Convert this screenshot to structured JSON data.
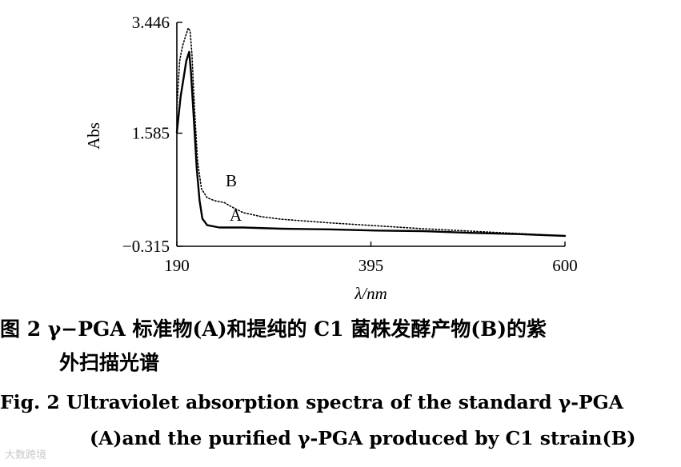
{
  "chart_data": {
    "type": "line",
    "xlabel": "λ/nm",
    "ylabel": "Abs",
    "xlim": [
      190,
      600
    ],
    "ylim": [
      -0.315,
      3.446
    ],
    "x_ticks": [
      190,
      395,
      600
    ],
    "y_ticks": [
      -0.315,
      1.585,
      3.446
    ],
    "x_tick_labels": [
      "190",
      "395",
      "600"
    ],
    "y_tick_labels": [
      "−0.315",
      "1.585",
      "3.446"
    ],
    "grid": false,
    "series": [
      {
        "name": "A",
        "style": "solid",
        "color": "#000000",
        "points": [
          [
            190,
            1.6
          ],
          [
            194,
            2.2
          ],
          [
            197,
            2.5
          ],
          [
            200,
            2.8
          ],
          [
            203,
            2.95
          ],
          [
            205,
            2.6
          ],
          [
            208,
            1.8
          ],
          [
            211,
            1.0
          ],
          [
            214,
            0.45
          ],
          [
            217,
            0.15
          ],
          [
            222,
            0.04
          ],
          [
            235,
            0.0
          ],
          [
            260,
            0.0
          ],
          [
            300,
            -0.02
          ],
          [
            350,
            -0.03
          ],
          [
            400,
            -0.05
          ],
          [
            450,
            -0.06
          ],
          [
            500,
            -0.09
          ],
          [
            550,
            -0.11
          ],
          [
            600,
            -0.14
          ]
        ]
      },
      {
        "name": "B",
        "style": "dotted",
        "color": "#000000",
        "points": [
          [
            190,
            2.0
          ],
          [
            193,
            2.8
          ],
          [
            196,
            3.05
          ],
          [
            199,
            3.2
          ],
          [
            202,
            3.35
          ],
          [
            204,
            3.3
          ],
          [
            206,
            2.9
          ],
          [
            209,
            1.9
          ],
          [
            212,
            1.1
          ],
          [
            216,
            0.65
          ],
          [
            222,
            0.5
          ],
          [
            230,
            0.45
          ],
          [
            240,
            0.42
          ],
          [
            250,
            0.33
          ],
          [
            260,
            0.25
          ],
          [
            280,
            0.18
          ],
          [
            300,
            0.14
          ],
          [
            350,
            0.08
          ],
          [
            400,
            0.03
          ],
          [
            450,
            -0.02
          ],
          [
            500,
            -0.06
          ],
          [
            550,
            -0.1
          ],
          [
            600,
            -0.14
          ]
        ]
      }
    ]
  },
  "caption": {
    "cn_line1": "图 2   γ−PGA 标准物(A)和提纯的 C1 菌株发酵产物(B)的紫",
    "cn_line2": "外扫描光谱",
    "en_line1": "Fig. 2    Ultraviolet absorption spectra of the standard γ-PGA",
    "en_line2": "(A)and the purified γ-PGA produced by C1 strain(B)"
  },
  "watermark": "大数跨境"
}
